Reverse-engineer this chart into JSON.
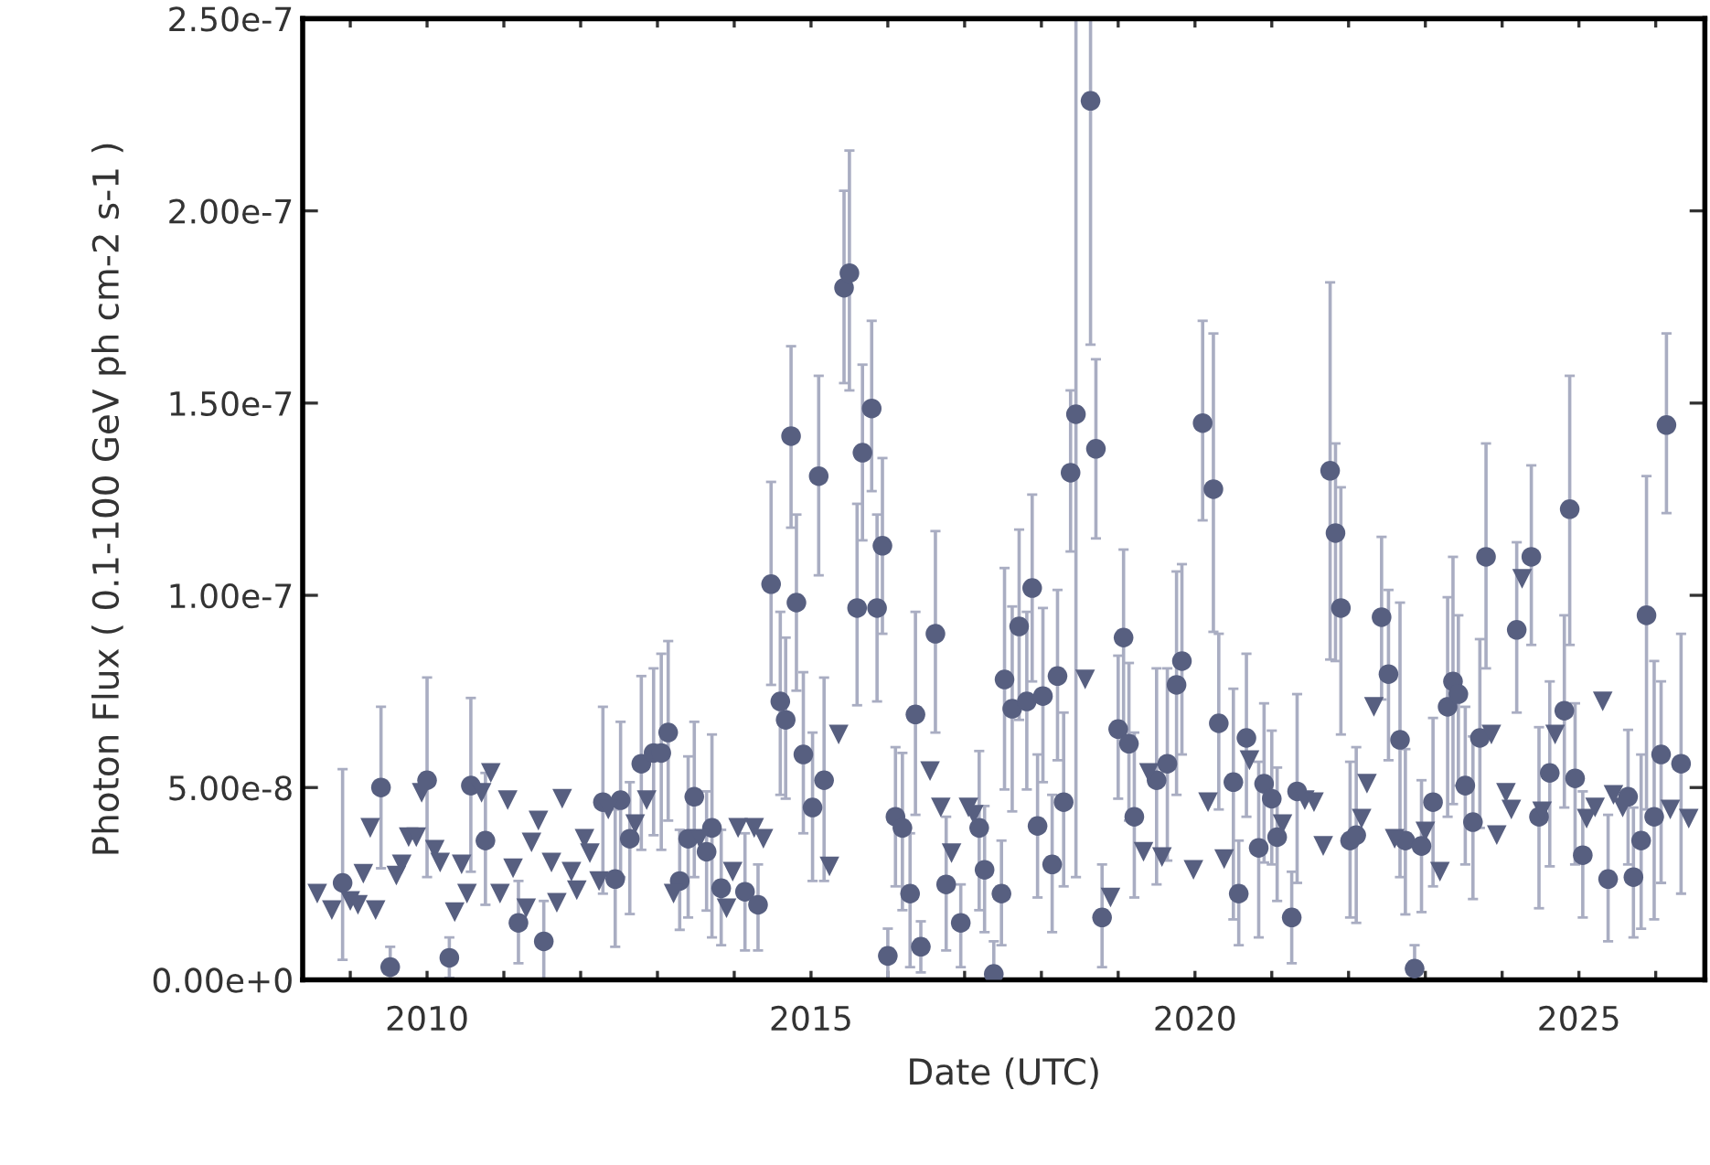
{
  "chart_data": {
    "type": "scatter",
    "xlabel": "Date (UTC)",
    "ylabel": "Photon Flux ( 0.1-100 GeV ph cm-2 s-1 )",
    "xlim": [
      2008.38,
      2026.64
    ],
    "ylim": [
      0,
      2.5e-07
    ],
    "xticks": [
      {
        "value": 2009,
        "label": null
      },
      2010,
      {
        "value": 2011,
        "label": null
      },
      {
        "value": 2012,
        "label": null
      },
      {
        "value": 2013,
        "label": null
      },
      {
        "value": 2014,
        "label": null
      },
      2015,
      {
        "value": 2016,
        "label": null
      },
      {
        "value": 2017,
        "label": null
      },
      {
        "value": 2018,
        "label": null
      },
      {
        "value": 2019,
        "label": null
      },
      2020,
      {
        "value": 2021,
        "label": null
      },
      {
        "value": 2022,
        "label": null
      },
      {
        "value": 2023,
        "label": null
      },
      {
        "value": 2024,
        "label": null
      },
      2025,
      {
        "value": 2026,
        "label": null
      }
    ],
    "yticks": [
      {
        "value": 0,
        "label": "0.00e+0"
      },
      {
        "value": 5e-08,
        "label": "5.00e-8"
      },
      {
        "value": 1e-07,
        "label": "1.00e-7"
      },
      {
        "value": 1.5e-07,
        "label": "1.50e-7"
      },
      {
        "value": 2e-07,
        "label": "2.00e-7"
      },
      {
        "value": 2.5e-07,
        "label": "2.50e-7"
      }
    ],
    "grid": false,
    "series": [
      {
        "marker": "circle",
        "color": "#575f80",
        "x": [
          2008.9,
          2009.4,
          2009.52,
          2010.0,
          2010.29,
          2010.57,
          2010.76,
          2011.19,
          2011.52,
          2012.29,
          2012.45,
          2012.52,
          2012.64,
          2012.79,
          2012.95,
          2013.05,
          2013.14,
          2013.29,
          2013.4,
          2013.48,
          2013.64,
          2013.71,
          2013.83,
          2014.14,
          2014.31,
          2014.48,
          2014.6,
          2014.67,
          2014.74,
          2014.81,
          2014.9,
          2015.02,
          2015.1,
          2015.17,
          2015.43,
          2015.5,
          2015.6,
          2015.67,
          2015.79,
          2015.86,
          2015.93,
          2016.0,
          2016.1,
          2016.19,
          2016.29,
          2016.36,
          2016.43,
          2016.62,
          2016.76,
          2016.95,
          2017.19,
          2017.26,
          2017.38,
          2017.48,
          2017.52,
          2017.62,
          2017.71,
          2017.81,
          2017.88,
          2017.95,
          2018.02,
          2018.14,
          2018.21,
          2018.29,
          2018.38,
          2018.45,
          2018.64,
          2018.71,
          2018.79,
          2019.0,
          2019.07,
          2019.14,
          2019.21,
          2019.5,
          2019.64,
          2019.76,
          2019.83,
          2020.1,
          2020.24,
          2020.31,
          2020.5,
          2020.57,
          2020.67,
          2020.83,
          2020.9,
          2021.0,
          2021.07,
          2021.26,
          2021.33,
          2021.76,
          2021.83,
          2021.9,
          2022.02,
          2022.1,
          2022.43,
          2022.52,
          2022.67,
          2022.74,
          2022.86,
          2022.95,
          2023.1,
          2023.29,
          2023.36,
          2023.43,
          2023.52,
          2023.62,
          2023.71,
          2023.79,
          2024.19,
          2024.38,
          2024.48,
          2024.62,
          2024.81,
          2024.88,
          2024.95,
          2025.05,
          2025.38,
          2025.64,
          2025.71,
          2025.81,
          2025.88,
          2025.98,
          2026.07,
          2026.14,
          2026.33
        ],
        "values": [
          2.52e-08,
          5e-08,
          3.3e-09,
          5.19e-08,
          5.7e-09,
          5.05e-08,
          3.62e-08,
          1.48e-08,
          1e-08,
          4.62e-08,
          2.62e-08,
          4.67e-08,
          3.67e-08,
          5.62e-08,
          5.9e-08,
          5.9e-08,
          6.43e-08,
          2.57e-08,
          3.67e-08,
          4.76e-08,
          3.33e-08,
          3.95e-08,
          2.38e-08,
          2.29e-08,
          1.95e-08,
          1.029e-07,
          7.24e-08,
          6.76e-08,
          1.414e-07,
          9.81e-08,
          5.86e-08,
          4.48e-08,
          1.31e-07,
          5.19e-08,
          1.8e-07,
          1.838e-07,
          9.67e-08,
          1.371e-07,
          1.486e-07,
          9.67e-08,
          1.129e-07,
          6.2e-09,
          4.24e-08,
          3.95e-08,
          2.24e-08,
          6.9e-08,
          8.6e-09,
          9e-08,
          2.48e-08,
          1.48e-08,
          3.95e-08,
          2.86e-08,
          1.5e-09,
          2.24e-08,
          7.81e-08,
          7.05e-08,
          9.19e-08,
          7.24e-08,
          1.019e-07,
          4e-08,
          7.38e-08,
          3e-08,
          7.9e-08,
          4.62e-08,
          1.319e-07,
          1.471e-07,
          2.286e-07,
          1.381e-07,
          1.62e-08,
          6.52e-08,
          8.9e-08,
          6.14e-08,
          4.24e-08,
          5.19e-08,
          5.62e-08,
          7.67e-08,
          8.29e-08,
          1.448e-07,
          1.276e-07,
          6.67e-08,
          5.14e-08,
          2.24e-08,
          6.29e-08,
          3.43e-08,
          5.1e-08,
          4.71e-08,
          3.71e-08,
          1.62e-08,
          4.9e-08,
          1.324e-07,
          1.162e-07,
          9.67e-08,
          3.62e-08,
          3.76e-08,
          9.43e-08,
          7.95e-08,
          6.24e-08,
          3.62e-08,
          2.9e-09,
          3.48e-08,
          4.62e-08,
          7.1e-08,
          7.76e-08,
          7.43e-08,
          5.05e-08,
          4.1e-08,
          6.29e-08,
          1.1e-07,
          9.1e-08,
          1.1e-07,
          4.24e-08,
          5.38e-08,
          7e-08,
          1.224e-07,
          5.24e-08,
          3.24e-08,
          2.62e-08,
          4.76e-08,
          2.67e-08,
          3.62e-08,
          9.48e-08,
          4.24e-08,
          5.86e-08,
          1.443e-07,
          5.62e-08
        ],
        "errors": [
          [
            5.2e-09,
            5.48e-08
          ],
          [
            2.9e-08,
            7.1e-08
          ],
          [
            0,
            8.6e-09
          ],
          [
            2.67e-08,
            7.86e-08
          ],
          [
            5e-10,
            1.1e-08
          ],
          [
            2.81e-08,
            7.33e-08
          ],
          [
            1.95e-08,
            5.38e-08
          ],
          [
            4.3e-09,
            2.57e-08
          ],
          [
            0,
            2.05e-08
          ],
          [
            2.24e-08,
            7.1e-08
          ],
          [
            8.6e-09,
            4.43e-08
          ],
          [
            2.67e-08,
            6.71e-08
          ],
          [
            1.71e-08,
            5.14e-08
          ],
          [
            3.38e-08,
            7.9e-08
          ],
          [
            3.76e-08,
            8.1e-08
          ],
          [
            3.38e-08,
            8.48e-08
          ],
          [
            4.14e-08,
            8.81e-08
          ],
          [
            1.3e-08,
            3.9e-08
          ],
          [
            1.62e-08,
            5.81e-08
          ],
          [
            2.67e-08,
            6.71e-08
          ],
          [
            1.8e-08,
            4.9e-08
          ],
          [
            1.1e-08,
            6.38e-08
          ],
          [
            9e-09,
            3.9e-08
          ],
          [
            7.6e-09,
            3.81e-08
          ],
          [
            7.6e-09,
            3e-08
          ],
          [
            7.67e-08,
            1.295e-07
          ],
          [
            4.81e-08,
            9.57e-08
          ],
          [
            4.71e-08,
            8.9e-08
          ],
          [
            1.176e-07,
            1.648e-07
          ],
          [
            7.52e-08,
            1.21e-07
          ],
          [
            3.81e-08,
            8e-08
          ],
          [
            2.57e-08,
            6.43e-08
          ],
          [
            1.052e-07,
            1.571e-07
          ],
          [
            2.57e-08,
            7.86e-08
          ],
          [
            1.552e-07,
            2.052e-07
          ],
          [
            1.533e-07,
            2.157e-07
          ],
          [
            7.14e-08,
            1.238e-07
          ],
          [
            1.143e-07,
            1.6e-07
          ],
          [
            1.271e-07,
            1.714e-07
          ],
          [
            7.24e-08,
            1.21e-07
          ],
          [
            9e-08,
            1.357e-07
          ],
          [
            0,
            1.33e-08
          ],
          [
            2.43e-08,
            6.05e-08
          ],
          [
            1.81e-08,
            5.9e-08
          ],
          [
            3.3e-09,
            3.81e-08
          ],
          [
            4.29e-08,
            9.57e-08
          ],
          [
            1.9e-09,
            1.52e-08
          ],
          [
            6.43e-08,
            1.167e-07
          ],
          [
            7.6e-09,
            4.24e-08
          ],
          [
            3.3e-09,
            2.48e-08
          ],
          [
            1.81e-08,
            5.95e-08
          ],
          [
            1.24e-08,
            4.52e-08
          ],
          [
            0,
            1e-08
          ],
          [
            9e-09,
            3.62e-08
          ],
          [
            4.95e-08,
            1.071e-07
          ],
          [
            4.38e-08,
            9.71e-08
          ],
          [
            6.76e-08,
            1.171e-07
          ],
          [
            4.95e-08,
            9.57e-08
          ],
          [
            7.76e-08,
            1.262e-07
          ],
          [
            2.14e-08,
            5.86e-08
          ],
          [
            5.14e-08,
            9.67e-08
          ],
          [
            1.24e-08,
            4.81e-08
          ],
          [
            5.71e-08,
            1.014e-07
          ],
          [
            2.43e-08,
            6.95e-08
          ],
          [
            1.114e-07,
            1.533e-07
          ],
          [
            2.67e-08,
            2.5e-07
          ],
          [
            1.652e-07,
            2.5e-07
          ],
          [
            1.148e-07,
            1.614e-07
          ],
          [
            3.3e-09,
            3e-08
          ],
          [
            4.71e-08,
            8.43e-08
          ],
          [
            6.1e-08,
            1.119e-07
          ],
          [
            4.14e-08,
            8.24e-08
          ],
          [
            2.14e-08,
            6.43e-08
          ],
          [
            2.48e-08,
            8.1e-08
          ],
          [
            3.1e-08,
            8.1e-08
          ],
          [
            4.81e-08,
            1.062e-07
          ],
          [
            5.86e-08,
            1.081e-07
          ],
          [
            1.195e-07,
            1.714e-07
          ],
          [
            9.05e-08,
            1.681e-07
          ],
          [
            4.43e-08,
            9e-08
          ],
          [
            1.57e-08,
            7.57e-08
          ],
          [
            9e-09,
            3.62e-08
          ],
          [
            4.24e-08,
            8.48e-08
          ],
          [
            1.1e-08,
            5.67e-08
          ],
          [
            3.05e-08,
            7.19e-08
          ],
          [
            3e-08,
            6.48e-08
          ],
          [
            2.05e-08,
            5.52e-08
          ],
          [
            4.3e-09,
            2.81e-08
          ],
          [
            2.52e-08,
            7.43e-08
          ],
          [
            8.33e-08,
            1.814e-07
          ],
          [
            8.29e-08,
            1.395e-07
          ],
          [
            6.38e-08,
            1.281e-07
          ],
          [
            1.62e-08,
            5.67e-08
          ],
          [
            1.48e-08,
            6.05e-08
          ],
          [
            7.29e-08,
            1.152e-07
          ],
          [
            5.71e-08,
            1.014e-07
          ],
          [
            2.67e-08,
            9.81e-08
          ],
          [
            1.7e-08,
            6e-08
          ],
          [
            0,
            9e-09
          ],
          [
            1.76e-08,
            5.19e-08
          ],
          [
            2.43e-08,
            6.81e-08
          ],
          [
            4.24e-08,
            9.95e-08
          ],
          [
            4.57e-08,
            1.1e-07
          ],
          [
            5.05e-08,
            9.48e-08
          ],
          [
            3e-08,
            7.1e-08
          ],
          [
            2.1e-08,
            6.33e-08
          ],
          [
            3.95e-08,
            8.86e-08
          ],
          [
            8.1e-08,
            1.395e-07
          ],
          [
            6.95e-08,
            1.138e-07
          ],
          [
            8.71e-08,
            1.338e-07
          ],
          [
            1.86e-08,
            6.57e-08
          ],
          [
            2.95e-08,
            7.76e-08
          ],
          [
            4.48e-08,
            9.48e-08
          ],
          [
            8.71e-08,
            1.571e-07
          ],
          [
            3e-08,
            7.19e-08
          ],
          [
            1.62e-08,
            4.9e-08
          ],
          [
            1e-08,
            4.29e-08
          ],
          [
            3e-08,
            6.5e-08
          ],
          [
            1.1e-08,
            4.48e-08
          ],
          [
            1.33e-08,
            5.86e-08
          ],
          [
            4.43e-08,
            1.31e-07
          ],
          [
            1.57e-08,
            8.29e-08
          ],
          [
            2.52e-08,
            7.76e-08
          ],
          [
            1.214e-07,
            1.681e-07
          ],
          [
            2.24e-08,
            9e-08
          ]
        ]
      },
      {
        "marker": "triangle",
        "color": "#575f80",
        "x": [
          2008.57,
          2008.76,
          2009.0,
          2009.1,
          2009.17,
          2009.26,
          2009.33,
          2009.6,
          2009.67,
          2009.76,
          2009.86,
          2009.93,
          2010.1,
          2010.17,
          2010.36,
          2010.45,
          2010.52,
          2010.71,
          2010.83,
          2010.95,
          2011.05,
          2011.12,
          2011.29,
          2011.36,
          2011.45,
          2011.62,
          2011.69,
          2011.76,
          2011.88,
          2011.95,
          2012.05,
          2012.12,
          2012.24,
          2012.36,
          2012.71,
          2012.86,
          2013.21,
          2013.55,
          2013.9,
          2013.98,
          2014.05,
          2014.26,
          2014.38,
          2015.24,
          2015.36,
          2016.55,
          2016.69,
          2016.83,
          2017.05,
          2017.12,
          2018.57,
          2018.9,
          2019.33,
          2019.4,
          2019.57,
          2019.98,
          2020.17,
          2020.38,
          2020.71,
          2021.14,
          2021.43,
          2021.55,
          2021.67,
          2022.17,
          2022.24,
          2022.33,
          2022.6,
          2023.0,
          2023.19,
          2023.86,
          2023.93,
          2024.05,
          2024.12,
          2024.26,
          2024.52,
          2024.69,
          2025.1,
          2025.21,
          2025.31,
          2025.45,
          2025.57,
          2026.19,
          2026.43
        ],
        "values": [
          2.24e-08,
          1.81e-08,
          2.05e-08,
          1.95e-08,
          2.76e-08,
          3.95e-08,
          1.81e-08,
          2.71e-08,
          3e-08,
          3.71e-08,
          3.71e-08,
          4.86e-08,
          3.38e-08,
          3.05e-08,
          1.76e-08,
          3e-08,
          2.24e-08,
          4.86e-08,
          5.38e-08,
          2.24e-08,
          4.67e-08,
          2.9e-08,
          1.86e-08,
          3.57e-08,
          4.14e-08,
          3.05e-08,
          2e-08,
          4.71e-08,
          2.81e-08,
          2.33e-08,
          3.67e-08,
          3.29e-08,
          2.57e-08,
          4.43e-08,
          4.05e-08,
          4.67e-08,
          2.24e-08,
          3.67e-08,
          1.86e-08,
          2.81e-08,
          3.95e-08,
          3.95e-08,
          3.67e-08,
          2.95e-08,
          6.38e-08,
          5.43e-08,
          4.48e-08,
          3.29e-08,
          4.48e-08,
          4.29e-08,
          7.81e-08,
          2.14e-08,
          3.33e-08,
          5.38e-08,
          3.19e-08,
          2.86e-08,
          4.62e-08,
          3.14e-08,
          5.71e-08,
          4.05e-08,
          4.67e-08,
          4.62e-08,
          3.48e-08,
          4.19e-08,
          5.1e-08,
          7.1e-08,
          3.67e-08,
          3.86e-08,
          2.81e-08,
          6.38e-08,
          3.76e-08,
          4.86e-08,
          4.43e-08,
          1.043e-07,
          4.38e-08,
          6.38e-08,
          4.19e-08,
          4.48e-08,
          7.24e-08,
          4.81e-08,
          4.48e-08,
          4.43e-08,
          4.19e-08
        ]
      }
    ]
  }
}
